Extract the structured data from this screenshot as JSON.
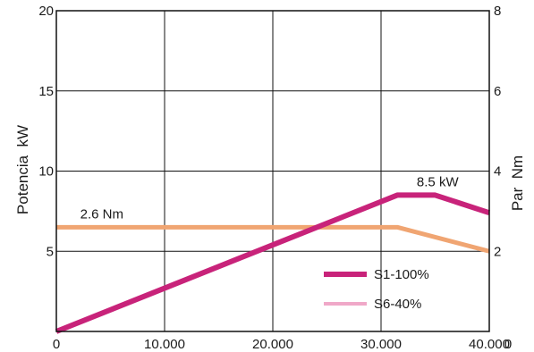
{
  "chart_data": {
    "type": "line",
    "x_ticks": [
      "10.000",
      "20.000",
      "30.000",
      "40.000"
    ],
    "x_tick_values": [
      10000,
      20000,
      30000,
      40000
    ],
    "x_origin_label": "0",
    "x_origin_label_right": "0",
    "xlim": [
      0,
      40000
    ],
    "ylabel_left": "Potencia  kW",
    "ylim_left": [
      0,
      20
    ],
    "y_ticks_left": [
      "5",
      "10",
      "15",
      "20"
    ],
    "y_tick_values_left": [
      5,
      10,
      15,
      20
    ],
    "ylabel_right": "Par  Nm",
    "ylim_right": [
      0,
      8
    ],
    "y_ticks_right": [
      "2",
      "4",
      "6",
      "8"
    ],
    "y_tick_values_right": [
      2,
      4,
      6,
      8
    ],
    "grid": true,
    "legend_position": "lower-right",
    "series": [
      {
        "name": "S1-100%",
        "axis": "left",
        "color": "#c8237a",
        "x": [
          0,
          31500,
          35000,
          40000
        ],
        "y": [
          0,
          8.5,
          8.5,
          7.4
        ]
      },
      {
        "name": "S6-40%",
        "axis": "right",
        "color": "#f0a572",
        "x": [
          0,
          31500,
          40000
        ],
        "y": [
          2.6,
          2.6,
          2.0
        ]
      }
    ],
    "legend_colors": [
      "#c8237a",
      "#f0a8c8"
    ],
    "annotations": [
      {
        "text": "8.5 kW",
        "x": 33300,
        "y": 8.5,
        "axis": "left"
      },
      {
        "text": "2.6 Nm",
        "x": 2200,
        "y": 2.6,
        "axis": "right"
      }
    ]
  }
}
